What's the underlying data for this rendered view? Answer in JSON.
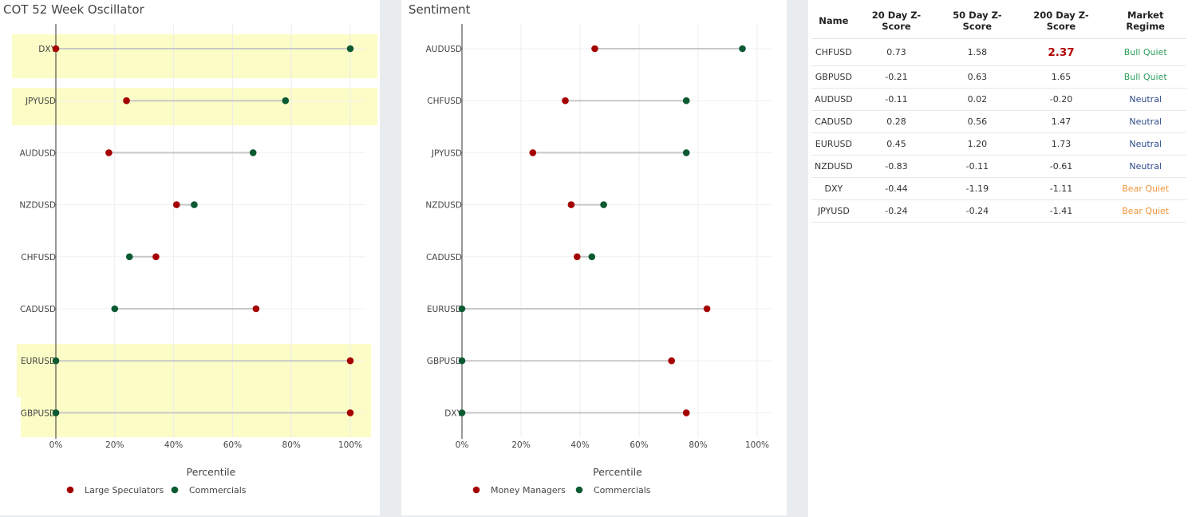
{
  "colors": {
    "large_speculators": "#a50000",
    "commercials": "#0c5a32",
    "money_managers": "#a50000",
    "highlight": "#fcfcc6",
    "connector": "#c8c8c8",
    "bull_quiet": "#2e9e5e",
    "neutral": "#2e4a8c",
    "bear_quiet": "#f0953a",
    "big_value": "#b30000"
  },
  "chart_data": [
    {
      "type": "dumbbell",
      "title": "COT 52 Week Oscillator",
      "xlabel": "Percentile",
      "ylabel": "",
      "xlim": [
        -0.1,
        1.06
      ],
      "x_ticks": [
        0,
        0.2,
        0.4,
        0.6,
        0.8,
        1.0
      ],
      "x_tick_labels": [
        "0%",
        "20%",
        "40%",
        "60%",
        "80%",
        "100%"
      ],
      "categories": [
        "DXY",
        "JPYUSD",
        "AUDUSD",
        "NZDUSD",
        "CHFUSD",
        "CADUSD",
        "EURUSD",
        "GBPUSD"
      ],
      "highlighted": [
        "DXY",
        "JPYUSD",
        "EURUSD",
        "GBPUSD"
      ],
      "series": [
        {
          "name": "Large Speculators",
          "color_key": "large_speculators",
          "values": [
            0.0,
            0.24,
            0.18,
            0.41,
            0.34,
            0.68,
            1.0,
            1.0
          ]
        },
        {
          "name": "Commercials",
          "color_key": "commercials",
          "values": [
            1.0,
            0.78,
            0.67,
            0.47,
            0.25,
            0.2,
            0.0,
            0.0
          ]
        }
      ],
      "legend": "bottom",
      "grid": true
    },
    {
      "type": "dumbbell",
      "title": "Sentiment",
      "xlabel": "Percentile",
      "ylabel": "",
      "xlim": [
        -0.02,
        1.05
      ],
      "x_ticks": [
        0,
        0.2,
        0.4,
        0.6,
        0.8,
        1.0
      ],
      "x_tick_labels": [
        "0%",
        "20%",
        "40%",
        "60%",
        "80%",
        "100%"
      ],
      "categories": [
        "AUDUSD",
        "CHFUSD",
        "JPYUSD",
        "NZDUSD",
        "CADUSD",
        "EURUSD",
        "GBPUSD",
        "DXY"
      ],
      "highlighted": [],
      "series": [
        {
          "name": "Money Managers",
          "color_key": "money_managers",
          "values": [
            0.45,
            0.35,
            0.24,
            0.37,
            0.39,
            0.83,
            0.71,
            0.76
          ]
        },
        {
          "name": "Commercials",
          "color_key": "commercials",
          "values": [
            0.95,
            0.76,
            0.76,
            0.48,
            0.44,
            0.0,
            0.0,
            0.0
          ]
        }
      ],
      "legend": "bottom",
      "grid": true
    },
    {
      "type": "table",
      "columns": [
        "Name",
        "20 Day Z-Score",
        "50 Day Z-Score",
        "200 Day Z-Score",
        "Market Regime"
      ],
      "rows": [
        {
          "name": "CHFUSD",
          "z20": "0.73",
          "z50": "1.58",
          "z200": "2.37",
          "regime": "Bull Quiet",
          "regime_key": "bull_quiet",
          "emphasis": true
        },
        {
          "name": "GBPUSD",
          "z20": "-0.21",
          "z50": "0.63",
          "z200": "1.65",
          "regime": "Bull Quiet",
          "regime_key": "bull_quiet",
          "emphasis": false
        },
        {
          "name": "AUDUSD",
          "z20": "-0.11",
          "z50": "0.02",
          "z200": "-0.20",
          "regime": "Neutral",
          "regime_key": "neutral",
          "emphasis": false
        },
        {
          "name": "CADUSD",
          "z20": "0.28",
          "z50": "0.56",
          "z200": "1.47",
          "regime": "Neutral",
          "regime_key": "neutral",
          "emphasis": false
        },
        {
          "name": "EURUSD",
          "z20": "0.45",
          "z50": "1.20",
          "z200": "1.73",
          "regime": "Neutral",
          "regime_key": "neutral",
          "emphasis": false
        },
        {
          "name": "NZDUSD",
          "z20": "-0.83",
          "z50": "-0.11",
          "z200": "-0.61",
          "regime": "Neutral",
          "regime_key": "neutral",
          "emphasis": false
        },
        {
          "name": "DXY",
          "z20": "-0.44",
          "z50": "-1.19",
          "z200": "-1.11",
          "regime": "Bear Quiet",
          "regime_key": "bear_quiet",
          "emphasis": false
        },
        {
          "name": "JPYUSD",
          "z20": "-0.24",
          "z50": "-0.24",
          "z200": "-1.41",
          "regime": "Bear Quiet",
          "regime_key": "bear_quiet",
          "emphasis": false
        }
      ]
    }
  ]
}
